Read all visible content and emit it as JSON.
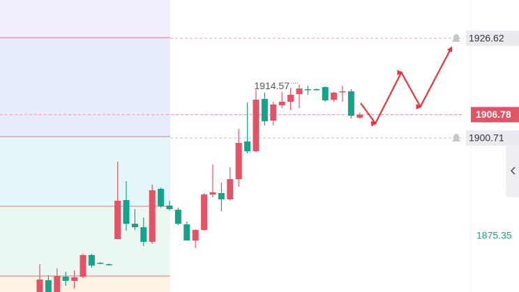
{
  "chart_data": {
    "type": "candlestick",
    "up_color": "#e05465",
    "down_color": "#13a589",
    "ylim": [
      1860.68,
      1936.58
    ],
    "yticks": [
      1875.35
    ],
    "alert_levels": [
      1926.62,
      1900.71
    ],
    "last_price": 1906.78,
    "max_label": 1914.57,
    "max_index": 30,
    "zone_levels": [
      1926.8,
      1901.07,
      1882.96,
      1864.84
    ],
    "zone_colors": [
      "#f1edfb",
      "#e7ecfd",
      "#e3f7fa",
      "#eaf8f1",
      "#fdf2e4"
    ],
    "open": [
      1860.67,
      1863.75,
      1860.67,
      1864.66,
      1863.57,
      1864.66,
      1870.28,
      1868.28,
      1867.92,
      1874.44,
      1884.59,
      1878.43,
      1877.52,
      1873.72,
      1887.49,
      1883.14,
      1882.05,
      1878.25,
      1874.08,
      1876.8,
      1886.04,
      1886.4,
      1884.77,
      1890.02,
      1899.81,
      1897.27,
      1910.86,
      1905.24,
      1909.23,
      1910.13,
      1912.12,
      1913.39,
      1913.39,
      1913.94,
      1910.67,
      1912.67,
      1912.85,
      1906.0
    ],
    "high": [
      1867.92,
      1865.02,
      1866.83,
      1865.93,
      1866.29,
      1870.64,
      1870.64,
      1868.46,
      1868.1,
      1894.55,
      1889.48,
      1882.23,
      1880.06,
      1888.57,
      1887.85,
      1884.41,
      1882.59,
      1878.97,
      1876.98,
      1886.4,
      1893.83,
      1889.12,
      1893.1,
      1903.07,
      1909.95,
      1913.21,
      1912.49,
      1910.13,
      1912.67,
      1913.75,
      1914.57,
      1914.3,
      1913.57,
      1914.12,
      1912.67,
      1914.3,
      1913.39,
      1907.3
    ],
    "low": [
      1860.67,
      1860.67,
      1860.67,
      1862.3,
      1861.58,
      1864.3,
      1867.02,
      1867.92,
      1867.56,
      1874.44,
      1876.62,
      1876.8,
      1872.63,
      1873.17,
      1882.59,
      1881.87,
      1878.07,
      1874.08,
      1872.09,
      1876.62,
      1885.31,
      1881.69,
      1884.41,
      1888.03,
      1896.73,
      1897.09,
      1903.97,
      1903.97,
      1908.5,
      1907.96,
      1908.5,
      1911.94,
      1913.03,
      1910.13,
      1910.13,
      1910.13,
      1905.78,
      1905.7
    ],
    "close": [
      1863.93,
      1860.67,
      1864.84,
      1863.57,
      1864.48,
      1870.28,
      1867.56,
      1868.1,
      1867.74,
      1884.41,
      1878.43,
      1877.52,
      1873.72,
      1887.12,
      1882.96,
      1882.23,
      1878.43,
      1874.08,
      1876.8,
      1886.04,
      1886.58,
      1884.77,
      1890.02,
      1899.44,
      1897.27,
      1910.67,
      1905.06,
      1909.41,
      1910.13,
      1911.94,
      1913.57,
      1913.21,
      1913.21,
      1910.49,
      1912.49,
      1912.85,
      1906.51,
      1906.78
    ],
    "forecast": {
      "color": "#e8333b",
      "x": [
        37.1,
        38.8,
        41.8,
        44.0,
        47.6
      ],
      "values": [
        1909.77,
        1904.52,
        1917.74,
        1908.86,
        1924.26
      ]
    }
  }
}
